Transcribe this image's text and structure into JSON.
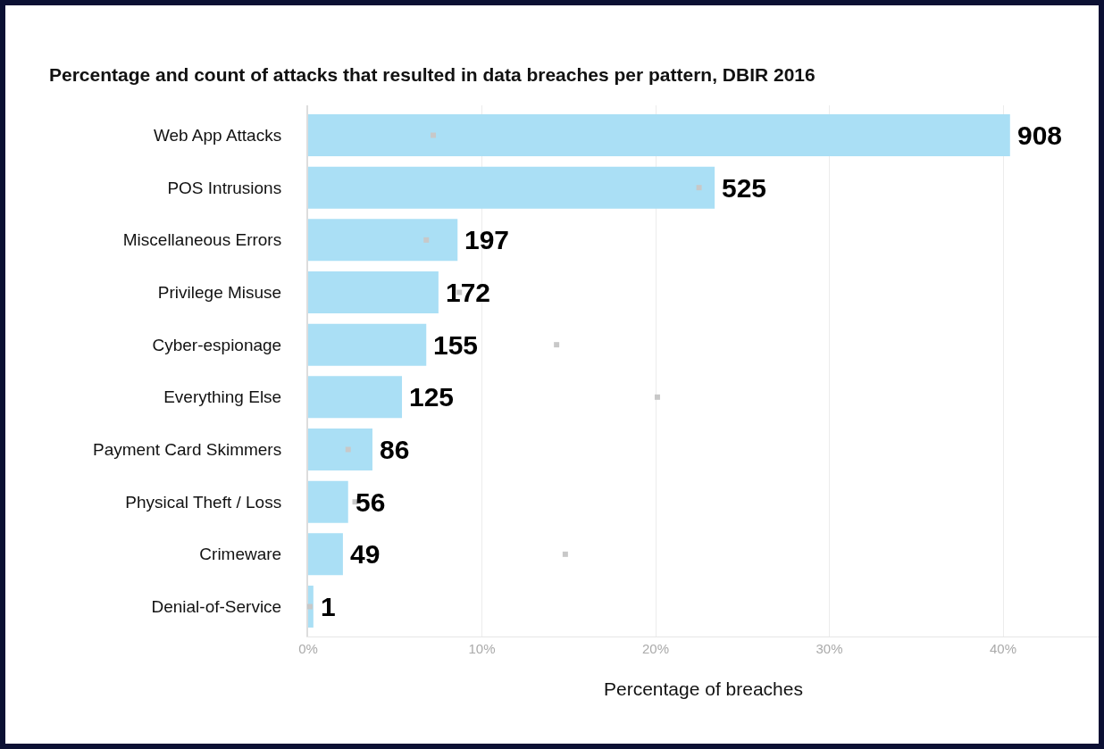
{
  "chart_data": {
    "type": "bar",
    "orientation": "horizontal",
    "title": "Percentage and count of attacks that resulted in data breaches per pattern, DBIR 2016",
    "xlabel": "Percentage of breaches",
    "categories": [
      "Web App Attacks",
      "POS Intrusions",
      "Miscellaneous Errors",
      "Privilege Misuse",
      "Cyber-espionage",
      "Everything Else",
      "Payment Card Skimmers",
      "Physical Theft / Loss",
      "Crimeware",
      "Denial-of-Service"
    ],
    "series": [
      {
        "type": "bar",
        "color": "#aadff5",
        "values": [
          40.4,
          23.4,
          8.6,
          7.5,
          6.8,
          5.4,
          3.7,
          2.3,
          2.0,
          0.3
        ]
      },
      {
        "type": "scatter",
        "color": "#c8c8c8",
        "values": [
          7.2,
          22.5,
          6.8,
          8.7,
          14.3,
          20.1,
          2.3,
          2.7,
          14.8,
          0.1
        ]
      }
    ],
    "annotations": [
      {
        "text": "908",
        "x": 40.4,
        "y": "Web App Attacks"
      },
      {
        "text": "525",
        "x": 23.4,
        "y": "POS Intrusions"
      },
      {
        "text": "197",
        "x": 8.6,
        "y": "Miscellaneous Errors"
      },
      {
        "text": "172",
        "x": 7.5,
        "y": "Privilege Misuse"
      },
      {
        "text": "155",
        "x": 6.8,
        "y": "Cyber-espionage"
      },
      {
        "text": "125",
        "x": 5.4,
        "y": "Everything Else"
      },
      {
        "text": "86",
        "x": 3.7,
        "y": "Payment Card Skimmers"
      },
      {
        "text": "56",
        "x": 2.3,
        "y": "Physical Theft / Loss"
      },
      {
        "text": "49",
        "x": 2.0,
        "y": "Crimeware"
      },
      {
        "text": "1",
        "x": 0.3,
        "y": "Denial-of-Service"
      }
    ],
    "xlim": [
      0,
      45.5
    ],
    "xticks": [
      {
        "value": 0,
        "label": "0%"
      },
      {
        "value": 10,
        "label": "10%"
      },
      {
        "value": 20,
        "label": "20%"
      },
      {
        "value": 30,
        "label": "30%"
      },
      {
        "value": 40,
        "label": "40%"
      }
    ],
    "grid": "x"
  }
}
